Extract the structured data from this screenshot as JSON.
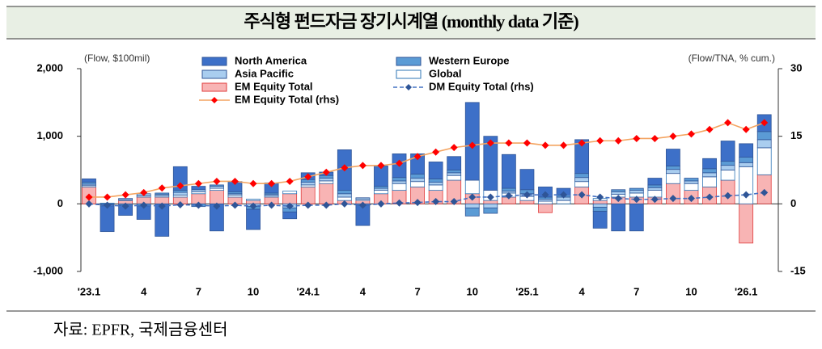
{
  "chart_data": {
    "type": "bar",
    "title": "주식형 펀드자금 장기시계열 (monthly data 기준)",
    "y_unit_label": "(Flow, $100mil)",
    "y2_unit_label": "(Flow/TNA, % cum.)",
    "source": "자료: EPFR, 국제금융센터",
    "categories": [
      "'23.1",
      null,
      null,
      "4",
      null,
      null,
      "7",
      null,
      null,
      "10",
      null,
      null,
      "'24.1",
      null,
      null,
      "4",
      null,
      null,
      "7",
      null,
      null,
      "10",
      null,
      null,
      "'25.1",
      null,
      null,
      "4",
      null,
      null,
      "7",
      null,
      null,
      "10",
      null,
      null,
      "'26.1",
      null
    ],
    "ylim": [
      -1000,
      2000
    ],
    "yticks": [
      {
        "value": -1000,
        "label": "-1,000"
      },
      0,
      {
        "value": 1000,
        "label": "1,000"
      },
      {
        "value": 2000,
        "label": "2,000"
      }
    ],
    "y2lim": [
      -15,
      30
    ],
    "y2ticks": [
      -15,
      0,
      15,
      30
    ],
    "series": [
      {
        "name": "North America",
        "type": "bar",
        "color": "#3d70c8",
        "values": [
          50,
          -380,
          -150,
          -200,
          -480,
          350,
          50,
          -400,
          150,
          -300,
          150,
          -100,
          100,
          50,
          600,
          -300,
          300,
          350,
          300,
          250,
          200,
          1150,
          800,
          500,
          300,
          150,
          100,
          500,
          -250,
          -400,
          -400,
          100,
          250,
          0,
          150,
          300,
          200,
          250
        ]
      },
      {
        "name": "Western Europe",
        "type": "bar",
        "color": "#5b9bd5",
        "values": [
          30,
          -20,
          -20,
          -30,
          20,
          30,
          -40,
          20,
          30,
          -40,
          20,
          -60,
          40,
          40,
          50,
          -20,
          30,
          50,
          60,
          50,
          40,
          -120,
          -80,
          40,
          60,
          30,
          30,
          60,
          -60,
          30,
          30,
          40,
          50,
          40,
          60,
          60,
          80,
          120
        ]
      },
      {
        "name": "Asia Pacific",
        "type": "bar",
        "color": "#a9cdef",
        "values": [
          20,
          -10,
          20,
          30,
          20,
          40,
          30,
          30,
          20,
          -40,
          20,
          -60,
          40,
          40,
          50,
          20,
          30,
          40,
          50,
          40,
          40,
          -60,
          -60,
          30,
          40,
          30,
          50,
          60,
          -50,
          40,
          40,
          40,
          60,
          40,
          60,
          70,
          60,
          120
        ]
      },
      {
        "name": "Global",
        "type": "bar",
        "color": "#ffffff",
        "stroke": "#2e75b6",
        "values": [
          20,
          10,
          10,
          20,
          20,
          30,
          30,
          30,
          30,
          20,
          20,
          40,
          30,
          40,
          50,
          20,
          50,
          100,
          80,
          80,
          70,
          200,
          150,
          60,
          60,
          40,
          50,
          80,
          30,
          40,
          60,
          100,
          150,
          100,
          150,
          150,
          550,
          400
        ]
      },
      {
        "name": "EM Equity Total",
        "type": "bar",
        "color": "#f8b4b4",
        "stroke": "#e03c3c",
        "values": [
          250,
          0,
          50,
          100,
          100,
          100,
          150,
          200,
          100,
          50,
          100,
          150,
          250,
          300,
          50,
          50,
          150,
          200,
          250,
          200,
          350,
          150,
          50,
          100,
          50,
          -130,
          0,
          250,
          50,
          100,
          100,
          100,
          300,
          200,
          250,
          350,
          -580,
          430
        ]
      },
      {
        "name": "DM Equity Total (rhs)",
        "type": "line",
        "axis": "y2",
        "color": "#4472c4",
        "marker_color": "#2f5597",
        "dashed": true,
        "values": [
          0,
          -0.3,
          -0.5,
          -0.3,
          -0.5,
          -0.2,
          -0.3,
          -0.5,
          -0.3,
          -0.5,
          -0.3,
          -0.5,
          -0.3,
          -0.3,
          0,
          -0.3,
          0,
          0.2,
          0.3,
          0.5,
          0.5,
          1.5,
          1.5,
          1.8,
          2,
          2,
          2,
          2,
          1.5,
          1.2,
          1,
          1,
          1.2,
          1.2,
          1.5,
          1.8,
          2,
          2.5
        ]
      },
      {
        "name": "EM Equity Total (rhs)",
        "type": "line",
        "axis": "y2",
        "color": "#f4a460",
        "marker_color": "#ff0000",
        "dashed": false,
        "values": [
          1.5,
          1.5,
          2,
          2.5,
          3.5,
          4,
          4.5,
          5,
          5,
          4.5,
          4.5,
          5,
          6,
          7,
          8,
          8.5,
          8.5,
          9,
          10.5,
          11.5,
          12.5,
          13,
          13.5,
          13.5,
          13.5,
          13,
          13,
          13.5,
          14,
          14,
          14.5,
          14.5,
          15,
          15.5,
          16.5,
          18,
          16.5,
          18
        ]
      }
    ]
  }
}
